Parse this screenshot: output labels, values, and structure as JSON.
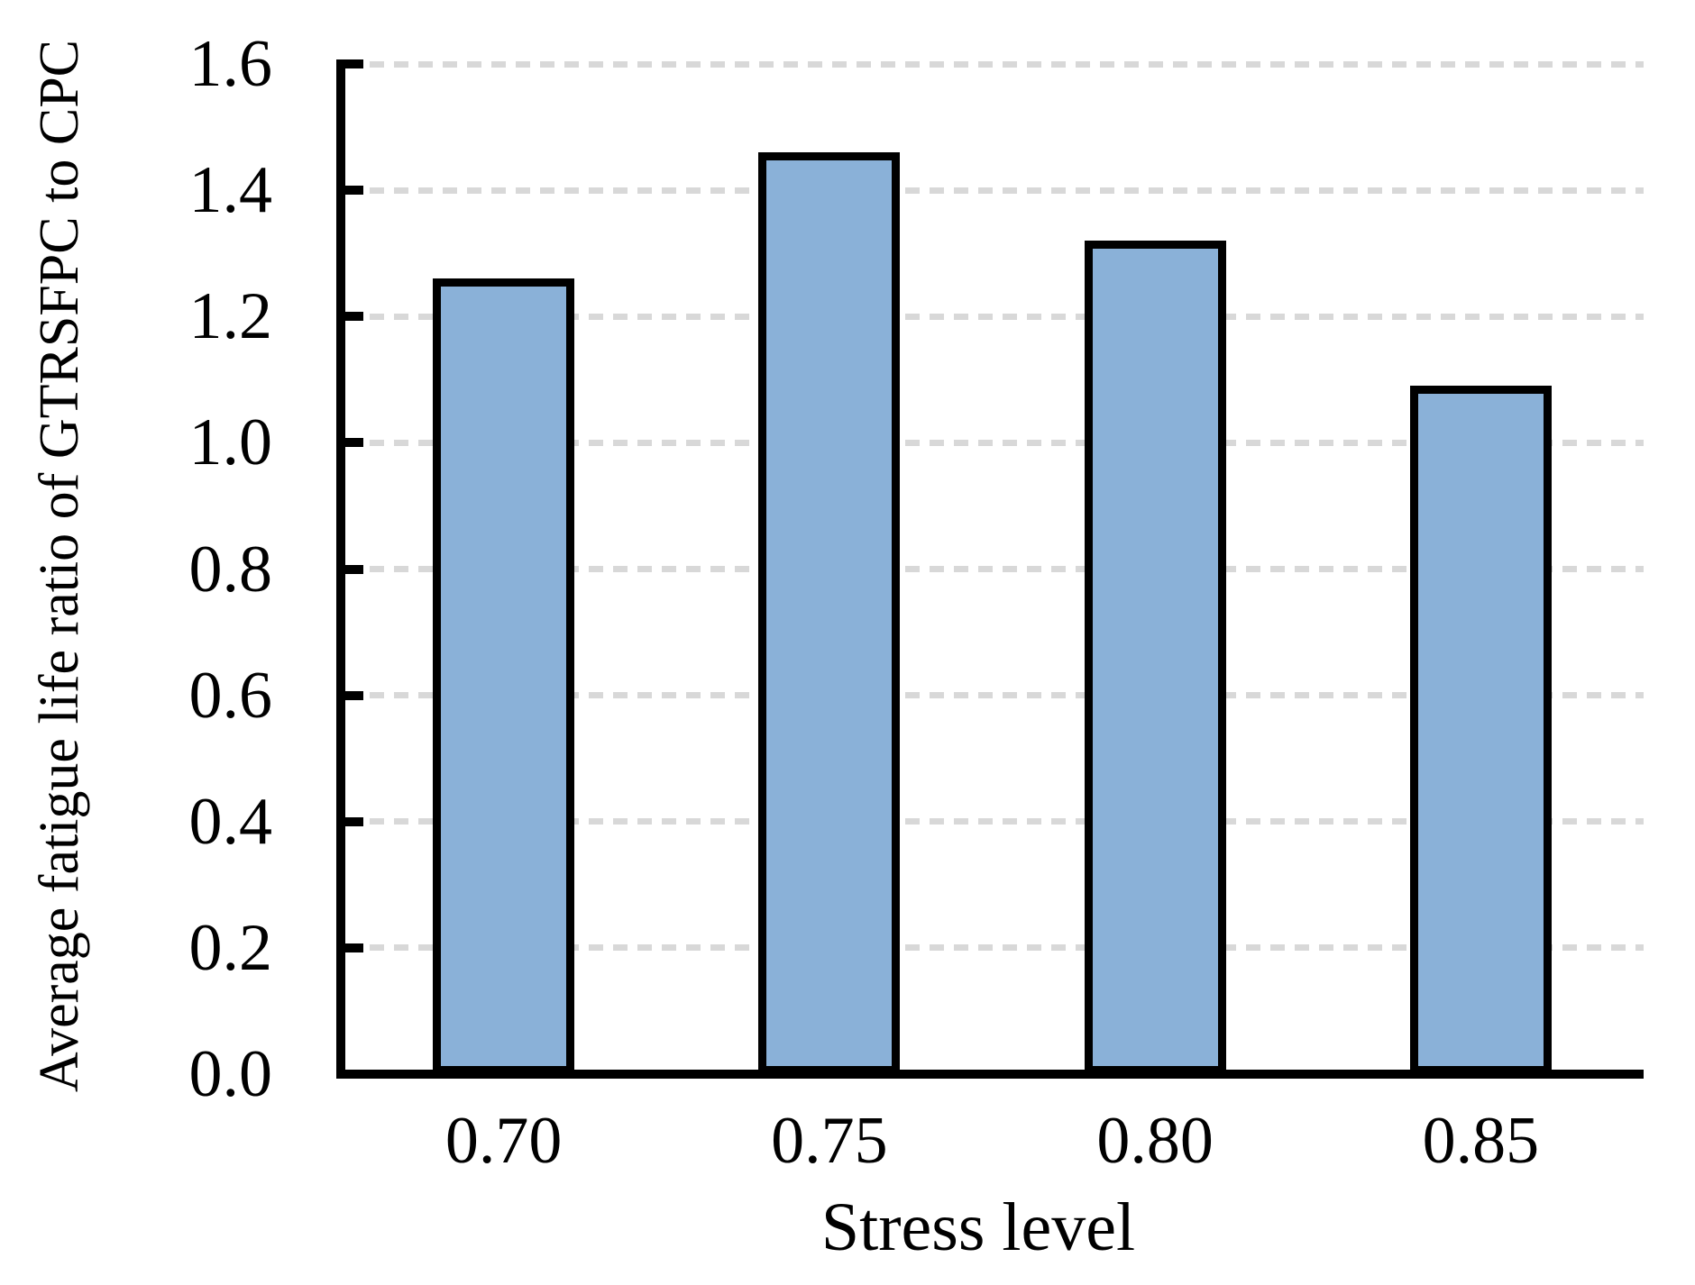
{
  "chart_data": {
    "type": "bar",
    "title": "",
    "categories": [
      "0.70",
      "0.75",
      "0.80",
      "0.85"
    ],
    "values": [
      1.26,
      1.46,
      1.32,
      1.09
    ],
    "xlabel": "Stress level",
    "ylabel": "Average fatigue life ratio of GTRSFPC to CPC",
    "ylim": [
      0.0,
      1.6
    ],
    "ytick_step": 0.2,
    "yticks": [
      "0.0",
      "0.2",
      "0.4",
      "0.6",
      "0.8",
      "1.0",
      "1.2",
      "1.4",
      "1.6"
    ],
    "grid": "horizontal-dashed",
    "legend": "none",
    "colors": {
      "bar_fill": "#8AB1D8",
      "bar_border": "#000000",
      "axis": "#000000",
      "gridline": "#D8D8D8",
      "background": "#FFFFFF",
      "text": "#000000"
    }
  }
}
